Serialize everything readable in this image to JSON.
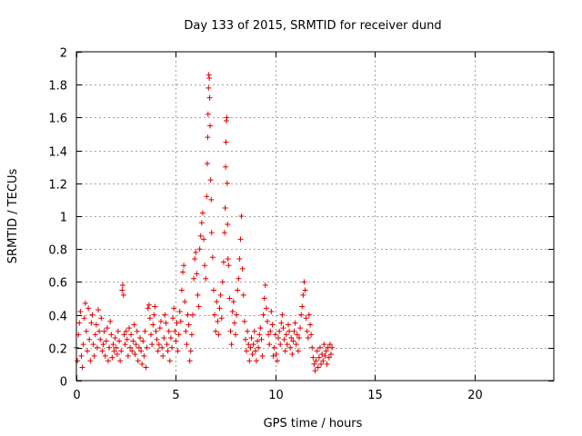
{
  "chart_data": {
    "type": "scatter",
    "title": "Day 133 of 2015, SRMTID for receiver dund",
    "xlabel": "GPS time / hours",
    "ylabel": "SRMTID / TECUs",
    "xlim": [
      0,
      24
    ],
    "ylim": [
      0,
      2
    ],
    "xticks": [
      {
        "value": 0,
        "label": "0"
      },
      {
        "value": 5,
        "label": "5"
      },
      {
        "value": 10,
        "label": "10"
      },
      {
        "value": 15,
        "label": "15"
      },
      {
        "value": 20,
        "label": "20"
      }
    ],
    "yticks": [
      {
        "value": 0,
        "label": "0"
      },
      {
        "value": 0.2,
        "label": "0.2"
      },
      {
        "value": 0.4,
        "label": "0.4"
      },
      {
        "value": 0.6,
        "label": "0.6"
      },
      {
        "value": 0.8,
        "label": "0.8"
      },
      {
        "value": 1.0,
        "label": "1"
      },
      {
        "value": 1.2,
        "label": "1.2"
      },
      {
        "value": 1.4,
        "label": "1.4"
      },
      {
        "value": 1.6,
        "label": "1.6"
      },
      {
        "value": 1.8,
        "label": "1.8"
      },
      {
        "value": 2.0,
        "label": "2"
      }
    ],
    "grid": true,
    "marker": "plus",
    "colors": {
      "marker": "#e00000",
      "grid": "#a0a0a0",
      "axis": "#000000"
    },
    "series": [
      {
        "points": [
          [
            0.0,
            0.2
          ],
          [
            0.05,
            0.12
          ],
          [
            0.1,
            0.28
          ],
          [
            0.15,
            0.35
          ],
          [
            0.2,
            0.42
          ],
          [
            0.25,
            0.15
          ],
          [
            0.3,
            0.08
          ],
          [
            0.35,
            0.22
          ],
          [
            0.4,
            0.38
          ],
          [
            0.45,
            0.47
          ],
          [
            0.5,
            0.3
          ],
          [
            0.55,
            0.18
          ],
          [
            0.6,
            0.44
          ],
          [
            0.65,
            0.25
          ],
          [
            0.7,
            0.12
          ],
          [
            0.75,
            0.35
          ],
          [
            0.8,
            0.4
          ],
          [
            0.85,
            0.22
          ],
          [
            0.9,
            0.15
          ],
          [
            0.95,
            0.28
          ],
          [
            1.0,
            0.34
          ],
          [
            1.05,
            0.2
          ],
          [
            1.1,
            0.43
          ],
          [
            1.15,
            0.3
          ],
          [
            1.2,
            0.25
          ],
          [
            1.25,
            0.38
          ],
          [
            1.3,
            0.18
          ],
          [
            1.35,
            0.22
          ],
          [
            1.4,
            0.3
          ],
          [
            1.45,
            0.15
          ],
          [
            1.5,
            0.24
          ],
          [
            1.55,
            0.32
          ],
          [
            1.6,
            0.12
          ],
          [
            1.65,
            0.2
          ],
          [
            1.7,
            0.36
          ],
          [
            1.75,
            0.28
          ],
          [
            1.8,
            0.14
          ],
          [
            1.85,
            0.22
          ],
          [
            1.9,
            0.18
          ],
          [
            1.95,
            0.26
          ],
          [
            2.0,
            0.2
          ],
          [
            2.05,
            0.16
          ],
          [
            2.1,
            0.3
          ],
          [
            2.15,
            0.24
          ],
          [
            2.2,
            0.12
          ],
          [
            2.25,
            0.18
          ],
          [
            2.3,
            0.55
          ],
          [
            2.33,
            0.58
          ],
          [
            2.37,
            0.52
          ],
          [
            2.4,
            0.28
          ],
          [
            2.45,
            0.22
          ],
          [
            2.5,
            0.3
          ],
          [
            2.55,
            0.25
          ],
          [
            2.6,
            0.15
          ],
          [
            2.65,
            0.32
          ],
          [
            2.7,
            0.2
          ],
          [
            2.75,
            0.28
          ],
          [
            2.8,
            0.18
          ],
          [
            2.85,
            0.24
          ],
          [
            2.9,
            0.34
          ],
          [
            2.95,
            0.16
          ],
          [
            3.0,
            0.22
          ],
          [
            3.05,
            0.3
          ],
          [
            3.1,
            0.12
          ],
          [
            3.15,
            0.2
          ],
          [
            3.2,
            0.26
          ],
          [
            3.25,
            0.18
          ],
          [
            3.3,
            0.1
          ],
          [
            3.35,
            0.24
          ],
          [
            3.4,
            0.15
          ],
          [
            3.45,
            0.3
          ],
          [
            3.5,
            0.08
          ],
          [
            3.55,
            0.2
          ],
          [
            3.6,
            0.44
          ],
          [
            3.65,
            0.46
          ],
          [
            3.7,
            0.38
          ],
          [
            3.75,
            0.28
          ],
          [
            3.8,
            0.22
          ],
          [
            3.85,
            0.34
          ],
          [
            3.9,
            0.4
          ],
          [
            3.95,
            0.45
          ],
          [
            4.0,
            0.3
          ],
          [
            4.05,
            0.25
          ],
          [
            4.1,
            0.18
          ],
          [
            4.15,
            0.22
          ],
          [
            4.2,
            0.32
          ],
          [
            4.25,
            0.36
          ],
          [
            4.3,
            0.2
          ],
          [
            4.35,
            0.15
          ],
          [
            4.4,
            0.26
          ],
          [
            4.45,
            0.4
          ],
          [
            4.5,
            0.35
          ],
          [
            4.55,
            0.22
          ],
          [
            4.6,
            0.18
          ],
          [
            4.65,
            0.3
          ],
          [
            4.7,
            0.12
          ],
          [
            4.75,
            0.26
          ],
          [
            4.8,
            0.2
          ],
          [
            4.85,
            0.38
          ],
          [
            4.9,
            0.44
          ],
          [
            4.95,
            0.3
          ],
          [
            5.0,
            0.24
          ],
          [
            5.05,
            0.35
          ],
          [
            5.1,
            0.18
          ],
          [
            5.15,
            0.28
          ],
          [
            5.2,
            0.42
          ],
          [
            5.25,
            0.36
          ],
          [
            5.3,
            0.55
          ],
          [
            5.35,
            0.66
          ],
          [
            5.4,
            0.7
          ],
          [
            5.45,
            0.48
          ],
          [
            5.5,
            0.3
          ],
          [
            5.55,
            0.22
          ],
          [
            5.6,
            0.4
          ],
          [
            5.65,
            0.34
          ],
          [
            5.7,
            0.12
          ],
          [
            5.75,
            0.18
          ],
          [
            5.8,
            0.28
          ],
          [
            5.85,
            0.4
          ],
          [
            5.9,
            0.62
          ],
          [
            5.95,
            0.74
          ],
          [
            6.0,
            0.78
          ],
          [
            6.05,
            0.65
          ],
          [
            6.1,
            0.52
          ],
          [
            6.15,
            0.45
          ],
          [
            6.2,
            0.8
          ],
          [
            6.25,
            0.88
          ],
          [
            6.3,
            0.96
          ],
          [
            6.35,
            1.02
          ],
          [
            6.4,
            0.86
          ],
          [
            6.45,
            0.7
          ],
          [
            6.5,
            0.62
          ],
          [
            6.55,
            1.12
          ],
          [
            6.58,
            1.32
          ],
          [
            6.6,
            1.48
          ],
          [
            6.62,
            1.62
          ],
          [
            6.64,
            1.78
          ],
          [
            6.66,
            1.86
          ],
          [
            6.68,
            1.84
          ],
          [
            6.7,
            1.72
          ],
          [
            6.72,
            1.55
          ],
          [
            6.75,
            1.22
          ],
          [
            6.78,
            1.1
          ],
          [
            6.8,
            0.9
          ],
          [
            6.85,
            0.75
          ],
          [
            6.9,
            0.55
          ],
          [
            6.95,
            0.4
          ],
          [
            7.0,
            0.3
          ],
          [
            7.05,
            0.48
          ],
          [
            7.1,
            0.36
          ],
          [
            7.15,
            0.28
          ],
          [
            7.2,
            0.44
          ],
          [
            7.25,
            0.52
          ],
          [
            7.3,
            0.38
          ],
          [
            7.35,
            0.6
          ],
          [
            7.4,
            0.72
          ],
          [
            7.45,
            0.9
          ],
          [
            7.48,
            1.05
          ],
          [
            7.5,
            1.3
          ],
          [
            7.52,
            1.45
          ],
          [
            7.54,
            1.58
          ],
          [
            7.56,
            1.6
          ],
          [
            7.58,
            1.2
          ],
          [
            7.6,
            0.95
          ],
          [
            7.62,
            0.74
          ],
          [
            7.65,
            0.7
          ],
          [
            7.7,
            0.5
          ],
          [
            7.75,
            0.3
          ],
          [
            7.8,
            0.22
          ],
          [
            7.85,
            0.42
          ],
          [
            7.9,
            0.48
          ],
          [
            7.95,
            0.35
          ],
          [
            8.0,
            0.28
          ],
          [
            8.05,
            0.4
          ],
          [
            8.1,
            0.55
          ],
          [
            8.15,
            0.62
          ],
          [
            8.2,
            0.74
          ],
          [
            8.25,
            0.86
          ],
          [
            8.3,
            1.0
          ],
          [
            8.35,
            0.68
          ],
          [
            8.4,
            0.52
          ],
          [
            8.45,
            0.36
          ],
          [
            8.5,
            0.25
          ],
          [
            8.55,
            0.18
          ],
          [
            8.6,
            0.3
          ],
          [
            8.65,
            0.22
          ],
          [
            8.7,
            0.12
          ],
          [
            8.75,
            0.2
          ],
          [
            8.8,
            0.26
          ],
          [
            8.85,
            0.16
          ],
          [
            8.9,
            0.22
          ],
          [
            8.95,
            0.3
          ],
          [
            9.0,
            0.18
          ],
          [
            9.05,
            0.12
          ],
          [
            9.1,
            0.24
          ],
          [
            9.15,
            0.2
          ],
          [
            9.2,
            0.28
          ],
          [
            9.25,
            0.32
          ],
          [
            9.3,
            0.25
          ],
          [
            9.35,
            0.15
          ],
          [
            9.4,
            0.4
          ],
          [
            9.45,
            0.5
          ],
          [
            9.5,
            0.58
          ],
          [
            9.55,
            0.44
          ],
          [
            9.6,
            0.36
          ],
          [
            9.65,
            0.28
          ],
          [
            9.7,
            0.22
          ],
          [
            9.75,
            0.3
          ],
          [
            9.8,
            0.42
          ],
          [
            9.85,
            0.34
          ],
          [
            9.9,
            0.15
          ],
          [
            9.95,
            0.2
          ],
          [
            10.0,
            0.28
          ],
          [
            10.05,
            0.16
          ],
          [
            10.1,
            0.12
          ],
          [
            10.15,
            0.26
          ],
          [
            10.2,
            0.3
          ],
          [
            10.25,
            0.22
          ],
          [
            10.3,
            0.35
          ],
          [
            10.35,
            0.4
          ],
          [
            10.4,
            0.32
          ],
          [
            10.45,
            0.25
          ],
          [
            10.5,
            0.18
          ],
          [
            10.55,
            0.28
          ],
          [
            10.6,
            0.22
          ],
          [
            10.65,
            0.34
          ],
          [
            10.7,
            0.3
          ],
          [
            10.75,
            0.2
          ],
          [
            10.8,
            0.26
          ],
          [
            10.85,
            0.16
          ],
          [
            10.9,
            0.24
          ],
          [
            10.95,
            0.3
          ],
          [
            11.0,
            0.35
          ],
          [
            11.05,
            0.22
          ],
          [
            11.1,
            0.28
          ],
          [
            11.15,
            0.18
          ],
          [
            11.2,
            0.26
          ],
          [
            11.25,
            0.32
          ],
          [
            11.3,
            0.4
          ],
          [
            11.35,
            0.45
          ],
          [
            11.4,
            0.52
          ],
          [
            11.45,
            0.6
          ],
          [
            11.5,
            0.55
          ],
          [
            11.55,
            0.38
          ],
          [
            11.6,
            0.3
          ],
          [
            11.65,
            0.26
          ],
          [
            11.7,
            0.4
          ],
          [
            11.75,
            0.34
          ],
          [
            11.8,
            0.28
          ],
          [
            11.85,
            0.2
          ],
          [
            11.9,
            0.14
          ],
          [
            11.95,
            0.1
          ],
          [
            12.0,
            0.06
          ],
          [
            12.05,
            0.12
          ],
          [
            12.1,
            0.18
          ],
          [
            12.15,
            0.08
          ],
          [
            12.2,
            0.14
          ],
          [
            12.25,
            0.2
          ],
          [
            12.3,
            0.1
          ],
          [
            12.35,
            0.16
          ],
          [
            12.4,
            0.12
          ],
          [
            12.45,
            0.22
          ],
          [
            12.5,
            0.15
          ],
          [
            12.55,
            0.18
          ],
          [
            12.6,
            0.1
          ],
          [
            12.65,
            0.2
          ],
          [
            12.7,
            0.14
          ],
          [
            12.75,
            0.22
          ],
          [
            12.8,
            0.16
          ],
          [
            12.85,
            0.2
          ]
        ]
      }
    ]
  }
}
